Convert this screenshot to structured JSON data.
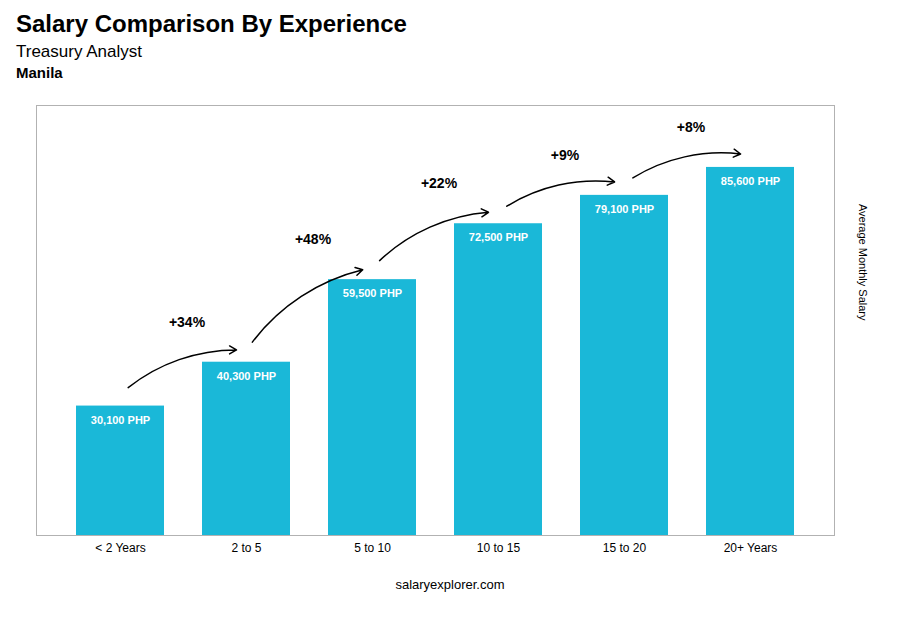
{
  "chart_data": {
    "type": "bar",
    "title": "Salary Comparison By Experience",
    "subtitle": "Treasury Analyst",
    "ylabel": "Average Monthly Salary",
    "caption": "salaryexplorer.com",
    "categories": [
      "< 2 Years",
      "2 to 5",
      "5 to 10",
      "10 to 15",
      "15 to 20",
      "20+ Years"
    ],
    "values": [
      30100,
      40300,
      59500,
      72500,
      79100,
      85600
    ],
    "value_labels": [
      "30,100 PHP",
      "40,300 PHP",
      "59,500 PHP",
      "72,500 PHP",
      "79,100 PHP",
      "85,600 PHP"
    ],
    "data_labels": true,
    "color": "#1ab8d8",
    "ylim": [
      0,
      100000
    ],
    "tick_labels": "x",
    "grid": false,
    "annotations": [
      {
        "text": "Manila"
      },
      {
        "text": "+34%",
        "from": "< 2 Years",
        "to": "2 to 5"
      },
      {
        "text": "+48%",
        "from": "2 to 5",
        "to": "5 to 10"
      },
      {
        "text": "+22%",
        "from": "5 to 10",
        "to": "10 to 15"
      },
      {
        "text": "+9%",
        "from": "10 to 15",
        "to": "15 to 20"
      },
      {
        "text": "+8%",
        "from": "15 to 20",
        "to": "20+ Years"
      }
    ]
  }
}
